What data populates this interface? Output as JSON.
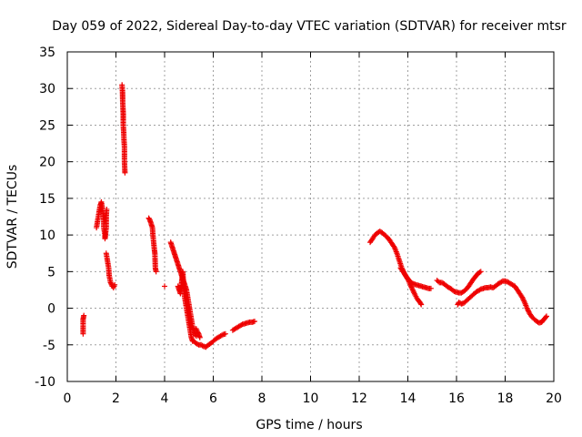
{
  "chart_data": {
    "type": "scatter",
    "title": "Day 059 of 2022, Sidereal Day-to-day VTEC variation (SDTVAR) for receiver mtsr",
    "xlabel": "GPS time / hours",
    "ylabel": "SDTVAR / TECUs",
    "xlim": [
      0,
      20
    ],
    "ylim": [
      -10,
      35
    ],
    "xticks": [
      0,
      2,
      4,
      6,
      8,
      10,
      12,
      14,
      16,
      18,
      20
    ],
    "yticks": [
      -10,
      -5,
      0,
      5,
      10,
      15,
      20,
      25,
      30,
      35
    ],
    "grid": true,
    "marker": "+",
    "color": "#ee0000",
    "series": [
      {
        "name": "SDTVAR",
        "segments": [
          [
            [
              0.65,
              -3.5
            ],
            [
              0.65,
              -2.5
            ],
            [
              0.65,
              -1.5
            ],
            [
              0.68,
              -1.0
            ]
          ],
          [
            [
              1.2,
              11.0
            ],
            [
              1.25,
              12.0
            ],
            [
              1.3,
              13.0
            ],
            [
              1.35,
              14.0
            ],
            [
              1.4,
              14.5
            ],
            [
              1.45,
              13.5
            ],
            [
              1.5,
              12.0
            ],
            [
              1.5,
              11.0
            ],
            [
              1.55,
              10.0
            ],
            [
              1.55,
              9.5
            ],
            [
              1.6,
              11.0
            ],
            [
              1.6,
              12.5
            ],
            [
              1.62,
              13.5
            ]
          ],
          [
            [
              1.6,
              7.5
            ],
            [
              1.65,
              6.5
            ],
            [
              1.7,
              5.5
            ],
            [
              1.72,
              4.5
            ],
            [
              1.78,
              3.5
            ],
            [
              1.85,
              3.0
            ],
            [
              1.9,
              2.8
            ],
            [
              1.95,
              3.2
            ]
          ],
          [
            [
              2.25,
              30.5
            ],
            [
              2.27,
              29.5
            ],
            [
              2.28,
              28.0
            ],
            [
              2.3,
              26.5
            ],
            [
              2.3,
              25.0
            ],
            [
              2.32,
              24.0
            ],
            [
              2.33,
              23.0
            ],
            [
              2.35,
              22.0
            ],
            [
              2.35,
              20.0
            ],
            [
              2.37,
              18.5
            ]
          ],
          [
            [
              3.35,
              12.3
            ],
            [
              3.4,
              12.0
            ],
            [
              3.45,
              11.5
            ],
            [
              3.5,
              11.0
            ],
            [
              3.52,
              10.0
            ],
            [
              3.55,
              9.0
            ],
            [
              3.58,
              8.0
            ],
            [
              3.6,
              7.5
            ],
            [
              3.62,
              5.5
            ],
            [
              3.65,
              5.0
            ]
          ],
          [
            [
              4.0,
              3.0
            ]
          ],
          [
            [
              4.25,
              9.0
            ],
            [
              4.3,
              8.5
            ],
            [
              4.35,
              8.0
            ],
            [
              4.4,
              7.5
            ],
            [
              4.45,
              7.0
            ],
            [
              4.5,
              6.5
            ],
            [
              4.55,
              6.0
            ],
            [
              4.6,
              5.5
            ],
            [
              4.65,
              5.0
            ],
            [
              4.7,
              4.5
            ],
            [
              4.75,
              4.0
            ],
            [
              4.8,
              3.5
            ],
            [
              4.85,
              3.0
            ],
            [
              4.9,
              2.5
            ],
            [
              4.95,
              1.5
            ],
            [
              5.0,
              0.5
            ],
            [
              5.05,
              -0.5
            ],
            [
              5.1,
              -1.5
            ],
            [
              5.15,
              -2.5
            ],
            [
              5.2,
              -3.0
            ],
            [
              5.25,
              -3.5
            ],
            [
              5.3,
              -3.8
            ]
          ],
          [
            [
              4.55,
              3.0
            ],
            [
              4.6,
              2.5
            ],
            [
              4.65,
              2.0
            ],
            [
              4.7,
              3.5
            ],
            [
              4.75,
              5.0
            ],
            [
              4.8,
              2.0
            ],
            [
              4.85,
              1.0
            ],
            [
              4.9,
              0.0
            ],
            [
              4.95,
              -1.0
            ],
            [
              5.0,
              -2.0
            ],
            [
              5.05,
              -3.0
            ],
            [
              5.1,
              -4.0
            ],
            [
              5.15,
              -4.5
            ]
          ],
          [
            [
              5.2,
              -4.5
            ],
            [
              5.3,
              -4.8
            ],
            [
              5.4,
              -5.0
            ],
            [
              5.5,
              -5.0
            ],
            [
              5.6,
              -5.2
            ],
            [
              5.7,
              -5.3
            ],
            [
              5.8,
              -5.0
            ],
            [
              5.9,
              -4.8
            ],
            [
              6.0,
              -4.5
            ],
            [
              6.1,
              -4.2
            ],
            [
              6.2,
              -4.0
            ],
            [
              6.3,
              -3.8
            ],
            [
              6.4,
              -3.6
            ],
            [
              6.5,
              -3.5
            ]
          ],
          [
            [
              5.3,
              -2.8
            ],
            [
              5.35,
              -3.2
            ],
            [
              5.4,
              -3.5
            ],
            [
              5.45,
              -4.0
            ]
          ],
          [
            [
              6.8,
              -3.0
            ],
            [
              6.9,
              -2.8
            ],
            [
              7.0,
              -2.6
            ],
            [
              7.1,
              -2.4
            ],
            [
              7.2,
              -2.2
            ],
            [
              7.3,
              -2.1
            ],
            [
              7.4,
              -2.0
            ],
            [
              7.5,
              -1.9
            ],
            [
              7.6,
              -1.9
            ],
            [
              7.7,
              -1.8
            ]
          ],
          [
            [
              12.45,
              9.0
            ],
            [
              12.55,
              9.5
            ],
            [
              12.65,
              10.0
            ],
            [
              12.75,
              10.3
            ],
            [
              12.85,
              10.5
            ],
            [
              12.95,
              10.3
            ],
            [
              13.05,
              10.0
            ],
            [
              13.15,
              9.7
            ],
            [
              13.25,
              9.3
            ],
            [
              13.35,
              8.8
            ],
            [
              13.45,
              8.3
            ],
            [
              13.55,
              7.5
            ],
            [
              13.65,
              6.5
            ],
            [
              13.75,
              5.5
            ],
            [
              13.85,
              4.8
            ],
            [
              13.95,
              4.2
            ],
            [
              14.05,
              3.8
            ],
            [
              14.15,
              3.5
            ],
            [
              14.25,
              3.3
            ],
            [
              14.35,
              3.2
            ],
            [
              14.45,
              3.1
            ],
            [
              14.55,
              3.0
            ],
            [
              14.65,
              2.9
            ],
            [
              14.75,
              2.8
            ],
            [
              14.85,
              2.7
            ],
            [
              14.95,
              2.7
            ]
          ],
          [
            [
              13.7,
              5.5
            ],
            [
              13.8,
              5.0
            ],
            [
              13.9,
              4.5
            ],
            [
              14.0,
              4.0
            ],
            [
              14.1,
              3.2
            ],
            [
              14.2,
              2.5
            ],
            [
              14.3,
              1.8
            ],
            [
              14.4,
              1.2
            ],
            [
              14.5,
              0.8
            ],
            [
              14.55,
              0.5
            ]
          ],
          [
            [
              15.2,
              3.8
            ],
            [
              15.3,
              3.5
            ],
            [
              15.4,
              3.5
            ],
            [
              15.5,
              3.3
            ],
            [
              15.6,
              3.0
            ],
            [
              15.7,
              2.8
            ],
            [
              15.8,
              2.6
            ],
            [
              15.9,
              2.3
            ],
            [
              16.0,
              2.2
            ],
            [
              16.1,
              2.1
            ],
            [
              16.2,
              2.1
            ],
            [
              16.3,
              2.3
            ],
            [
              16.4,
              2.6
            ],
            [
              16.5,
              3.0
            ],
            [
              16.6,
              3.5
            ],
            [
              16.7,
              4.0
            ],
            [
              16.8,
              4.4
            ],
            [
              16.9,
              4.8
            ],
            [
              17.0,
              5.0
            ]
          ],
          [
            [
              16.05,
              0.5
            ],
            [
              16.1,
              0.8
            ],
            [
              16.2,
              0.6
            ],
            [
              16.3,
              0.7
            ],
            [
              16.4,
              1.0
            ],
            [
              16.5,
              1.3
            ],
            [
              16.6,
              1.6
            ],
            [
              16.7,
              1.9
            ],
            [
              16.8,
              2.2
            ],
            [
              16.9,
              2.4
            ],
            [
              17.0,
              2.6
            ],
            [
              17.1,
              2.7
            ],
            [
              17.2,
              2.8
            ],
            [
              17.3,
              2.8
            ],
            [
              17.4,
              2.9
            ],
            [
              17.5,
              2.8
            ],
            [
              17.6,
              3.0
            ],
            [
              17.7,
              3.3
            ],
            [
              17.8,
              3.5
            ],
            [
              17.9,
              3.7
            ],
            [
              18.0,
              3.7
            ],
            [
              18.1,
              3.6
            ],
            [
              18.2,
              3.4
            ],
            [
              18.3,
              3.2
            ],
            [
              18.4,
              3.0
            ],
            [
              18.5,
              2.5
            ],
            [
              18.6,
              2.0
            ],
            [
              18.7,
              1.5
            ],
            [
              18.8,
              0.8
            ],
            [
              18.9,
              0.0
            ],
            [
              19.0,
              -0.7
            ],
            [
              19.1,
              -1.2
            ],
            [
              19.2,
              -1.5
            ],
            [
              19.3,
              -1.8
            ],
            [
              19.4,
              -2.0
            ],
            [
              19.5,
              -1.9
            ],
            [
              19.6,
              -1.5
            ],
            [
              19.7,
              -1.1
            ]
          ]
        ]
      }
    ]
  }
}
